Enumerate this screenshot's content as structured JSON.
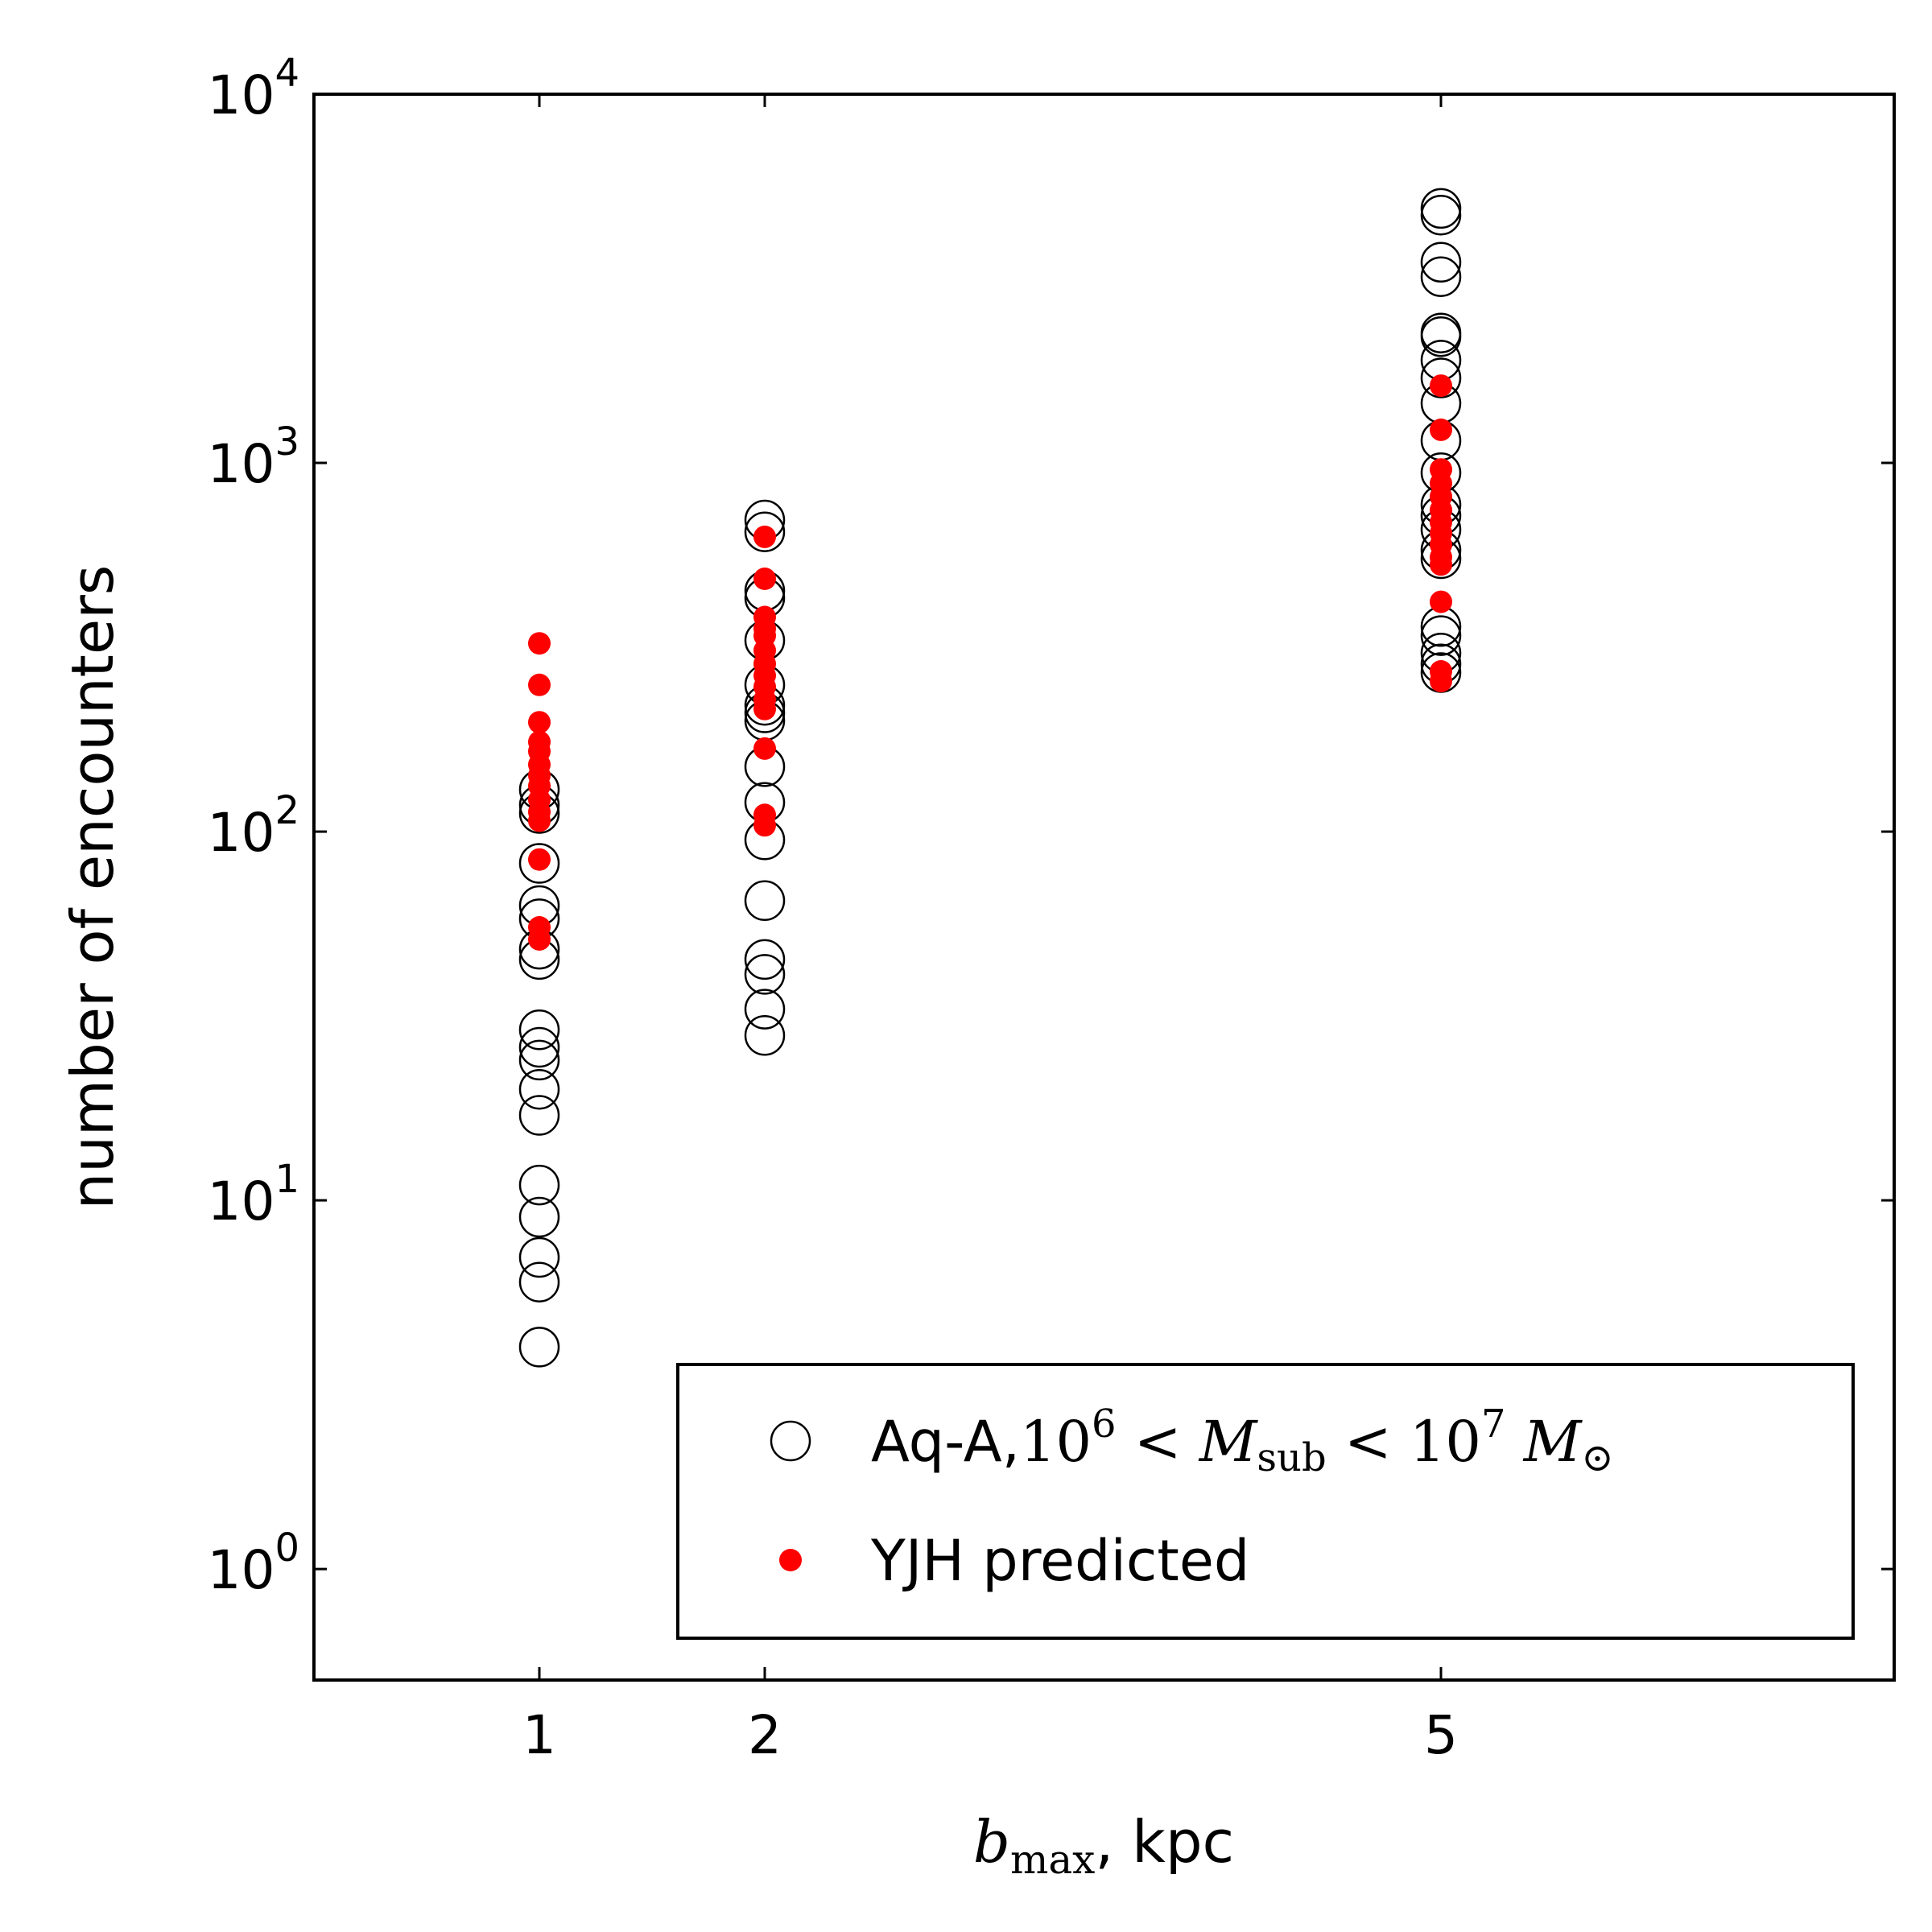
{
  "chart_data": {
    "type": "scatter",
    "x_scale": "categorical",
    "y_scale": "log",
    "xlim": [
      0,
      7
    ],
    "ylim": [
      0.5,
      10000
    ],
    "x_ticks": [
      {
        "value": 1,
        "label": "1"
      },
      {
        "value": 2,
        "label": "2"
      },
      {
        "value": 5,
        "label": "5"
      }
    ],
    "y_ticks": [
      {
        "value": 1,
        "base": "10",
        "exp": "0"
      },
      {
        "value": 10,
        "base": "10",
        "exp": "1"
      },
      {
        "value": 100,
        "base": "10",
        "exp": "2"
      },
      {
        "value": 1000,
        "base": "10",
        "exp": "3"
      },
      {
        "value": 10000,
        "base": "10",
        "exp": "4"
      }
    ],
    "xlabel": {
      "symbol": "b",
      "subscript": "max",
      "text": ", kpc"
    },
    "ylabel": "number of encounters",
    "legend_position": "lower right",
    "series": [
      {
        "key": "aqa",
        "legend": {
          "prefix": "Aq-A,",
          "math": "10^6 < M_sub < 10^7 M_sun"
        },
        "marker": "open-circle",
        "color": "#000000",
        "points": [
          {
            "x": 1,
            "y": 4
          },
          {
            "x": 1,
            "y": 6
          },
          {
            "x": 1,
            "y": 7
          },
          {
            "x": 1,
            "y": 9
          },
          {
            "x": 1,
            "y": 11
          },
          {
            "x": 1,
            "y": 17
          },
          {
            "x": 1,
            "y": 20
          },
          {
            "x": 1,
            "y": 24
          },
          {
            "x": 1,
            "y": 26
          },
          {
            "x": 1,
            "y": 29
          },
          {
            "x": 1,
            "y": 45
          },
          {
            "x": 1,
            "y": 48
          },
          {
            "x": 1,
            "y": 58
          },
          {
            "x": 1,
            "y": 63
          },
          {
            "x": 1,
            "y": 82
          },
          {
            "x": 1,
            "y": 112
          },
          {
            "x": 1,
            "y": 118
          },
          {
            "x": 1,
            "y": 130
          },
          {
            "x": 2,
            "y": 28
          },
          {
            "x": 2,
            "y": 33
          },
          {
            "x": 2,
            "y": 41
          },
          {
            "x": 2,
            "y": 45
          },
          {
            "x": 2,
            "y": 65
          },
          {
            "x": 2,
            "y": 95
          },
          {
            "x": 2,
            "y": 120
          },
          {
            "x": 2,
            "y": 150
          },
          {
            "x": 2,
            "y": 200
          },
          {
            "x": 2,
            "y": 210
          },
          {
            "x": 2,
            "y": 220
          },
          {
            "x": 2,
            "y": 250
          },
          {
            "x": 2,
            "y": 330
          },
          {
            "x": 2,
            "y": 430
          },
          {
            "x": 2,
            "y": 450
          },
          {
            "x": 2,
            "y": 650
          },
          {
            "x": 2,
            "y": 700
          },
          {
            "x": 5,
            "y": 270
          },
          {
            "x": 5,
            "y": 285
          },
          {
            "x": 5,
            "y": 305
          },
          {
            "x": 5,
            "y": 340
          },
          {
            "x": 5,
            "y": 360
          },
          {
            "x": 5,
            "y": 550
          },
          {
            "x": 5,
            "y": 580
          },
          {
            "x": 5,
            "y": 660
          },
          {
            "x": 5,
            "y": 720
          },
          {
            "x": 5,
            "y": 770
          },
          {
            "x": 5,
            "y": 940
          },
          {
            "x": 5,
            "y": 1150
          },
          {
            "x": 5,
            "y": 1450
          },
          {
            "x": 5,
            "y": 1700
          },
          {
            "x": 5,
            "y": 1900
          },
          {
            "x": 5,
            "y": 2200
          },
          {
            "x": 5,
            "y": 2250
          },
          {
            "x": 5,
            "y": 3200
          },
          {
            "x": 5,
            "y": 3500
          },
          {
            "x": 5,
            "y": 4700
          },
          {
            "x": 5,
            "y": 4900
          }
        ]
      },
      {
        "key": "yjh",
        "legend": {
          "text": "YJH predicted"
        },
        "marker": "filled-dot",
        "color": "#ff0000",
        "points": [
          {
            "x": 1,
            "y": 51
          },
          {
            "x": 1,
            "y": 55
          },
          {
            "x": 1,
            "y": 84
          },
          {
            "x": 1,
            "y": 107
          },
          {
            "x": 1,
            "y": 113
          },
          {
            "x": 1,
            "y": 122
          },
          {
            "x": 1,
            "y": 133
          },
          {
            "x": 1,
            "y": 142
          },
          {
            "x": 1,
            "y": 152
          },
          {
            "x": 1,
            "y": 165
          },
          {
            "x": 1,
            "y": 175
          },
          {
            "x": 1,
            "y": 198
          },
          {
            "x": 1,
            "y": 250
          },
          {
            "x": 1,
            "y": 324
          },
          {
            "x": 2,
            "y": 104
          },
          {
            "x": 2,
            "y": 111
          },
          {
            "x": 2,
            "y": 168
          },
          {
            "x": 2,
            "y": 215
          },
          {
            "x": 2,
            "y": 228
          },
          {
            "x": 2,
            "y": 247
          },
          {
            "x": 2,
            "y": 265
          },
          {
            "x": 2,
            "y": 285
          },
          {
            "x": 2,
            "y": 310
          },
          {
            "x": 2,
            "y": 340
          },
          {
            "x": 2,
            "y": 355
          },
          {
            "x": 2,
            "y": 382
          },
          {
            "x": 2,
            "y": 485
          },
          {
            "x": 2,
            "y": 630
          },
          {
            "x": 5,
            "y": 256
          },
          {
            "x": 5,
            "y": 272
          },
          {
            "x": 5,
            "y": 420
          },
          {
            "x": 5,
            "y": 530
          },
          {
            "x": 5,
            "y": 555
          },
          {
            "x": 5,
            "y": 600
          },
          {
            "x": 5,
            "y": 645
          },
          {
            "x": 5,
            "y": 690
          },
          {
            "x": 5,
            "y": 745
          },
          {
            "x": 5,
            "y": 810
          },
          {
            "x": 5,
            "y": 880
          },
          {
            "x": 5,
            "y": 960
          },
          {
            "x": 5,
            "y": 1230
          },
          {
            "x": 5,
            "y": 1620
          }
        ]
      }
    ]
  }
}
